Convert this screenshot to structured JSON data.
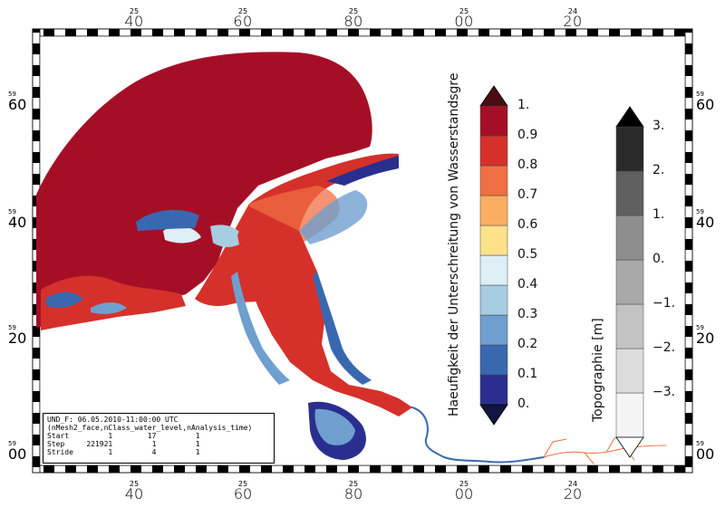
{
  "top_ticks": [
    {
      "small": "25",
      "big": "40"
    },
    {
      "small": "25",
      "big": "60"
    },
    {
      "small": "25",
      "big": "80"
    },
    {
      "small": "25",
      "big": "00"
    },
    {
      "small": "24",
      "big": "20"
    }
  ],
  "bottom_ticks": [
    {
      "small": "25",
      "big": "40"
    },
    {
      "small": "25",
      "big": "60"
    },
    {
      "small": "25",
      "big": "80"
    },
    {
      "small": "25",
      "big": "00"
    },
    {
      "small": "24",
      "big": "20"
    }
  ],
  "side_ticks": [
    {
      "small": "59",
      "big": "60"
    },
    {
      "small": "59",
      "big": "40"
    },
    {
      "small": "59",
      "big": "20"
    },
    {
      "small": "59",
      "big": "00"
    }
  ],
  "colorbar_main": {
    "title": "Haeufigkeit der Unterschreitung von Wasserstandsgre",
    "labels": [
      "1.",
      "0.9",
      "0.8",
      "0.7",
      "0.6",
      "0.5",
      "0.4",
      "0.3",
      "0.2",
      "0.1",
      "0."
    ],
    "colors": [
      "#2a2f8f",
      "#3a68b0",
      "#6f9fcf",
      "#a7cde3",
      "#deeef5",
      "#fde28a",
      "#fbae60",
      "#f06f42",
      "#d6302a",
      "#a50f26"
    ],
    "top_triangle_color": "#4a0d12",
    "bottom_triangle_color": "#111340"
  },
  "colorbar_topo": {
    "title": "Topographie [m]",
    "labels": [
      "3.",
      "2.",
      "1.",
      "0.",
      "−1.",
      "−2.",
      "−3."
    ],
    "colors": [
      "#f4f4f4",
      "#dcdcdc",
      "#c3c3c3",
      "#a9a9a9",
      "#8e8e8e",
      "#5f5f5f",
      "#2a2a2a"
    ],
    "top_triangle_color": "#000000",
    "bottom_triangle_color": "#ffffff"
  },
  "info": {
    "line1": "UND_F: 06.05.2010-11:00:00 UTC",
    "line2": "(nMesh2_face,nClass_water_level,nAnalysis_time)",
    "rows": [
      [
        "Start",
        "1",
        "17",
        "1"
      ],
      [
        "Step",
        "221921",
        "1",
        "1"
      ],
      [
        "Stride",
        "1",
        "4",
        "1"
      ]
    ]
  }
}
